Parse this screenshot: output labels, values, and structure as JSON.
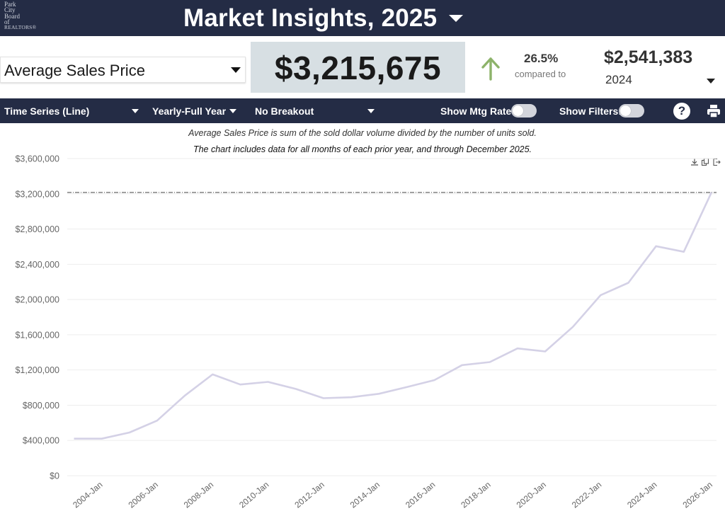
{
  "header": {
    "logo_lines": [
      "Park",
      "City",
      "Board",
      "of",
      "REALTORS®"
    ],
    "title": "Market Insights, 2025"
  },
  "metric": {
    "selected": "Average Sales Price",
    "current_value": "$3,215,675",
    "change_pct": "26.5%",
    "change_direction": "up",
    "compared_to_label": "compared to",
    "compare_value": "$2,541,383",
    "compare_year": "2024"
  },
  "controls": {
    "chart_type": "Time Series (Line)",
    "period": "Yearly-Full Year",
    "breakout": "No Breakout",
    "show_mtg_rate_label": "Show Mtg Rate:",
    "show_mtg_rate": false,
    "show_filters_label": "Show Filters:",
    "show_filters": false,
    "help_icon": "question-circle-icon",
    "print_icon": "printer-icon"
  },
  "description": {
    "line1": "Average Sales Price is sum of the sold dollar volume divided by the number of units sold.",
    "line2": "The chart includes data for all months of each prior year, and through December 2025."
  },
  "colors": {
    "header_bg": "#242c45",
    "value_box_bg": "#d7dfe3",
    "up_arrow": "#8db36a",
    "line": "#d4d1e6"
  },
  "chart_data": {
    "type": "line",
    "title": "",
    "xlabel": "",
    "ylabel": "",
    "x": [
      "2003-Jan",
      "2004-Jan",
      "2005-Jan",
      "2006-Jan",
      "2007-Jan",
      "2008-Jan",
      "2009-Jan",
      "2010-Jan",
      "2011-Jan",
      "2012-Jan",
      "2013-Jan",
      "2014-Jan",
      "2015-Jan",
      "2016-Jan",
      "2017-Jan",
      "2018-Jan",
      "2019-Jan",
      "2020-Jan",
      "2021-Jan",
      "2022-Jan",
      "2023-Jan",
      "2024-Jan",
      "2025-Jan",
      "2026-Jan"
    ],
    "x_tick_labels": [
      "2004-Jan",
      "2006-Jan",
      "2008-Jan",
      "2010-Jan",
      "2012-Jan",
      "2014-Jan",
      "2016-Jan",
      "2018-Jan",
      "2020-Jan",
      "2022-Jan",
      "2024-Jan",
      "2026-Jan"
    ],
    "series": [
      {
        "values": [
          420000,
          420000,
          490000,
          625000,
          910000,
          1150000,
          1035000,
          1065000,
          985000,
          880000,
          890000,
          930000,
          1005000,
          1085000,
          1255000,
          1290000,
          1445000,
          1410000,
          1690000,
          2050000,
          2190000,
          2605000,
          2541383,
          3215675
        ]
      }
    ],
    "y_tick_labels": [
      "$0",
      "$400,000",
      "$800,000",
      "$1,200,000",
      "$1,600,000",
      "$2,000,000",
      "$2,400,000",
      "$2,800,000",
      "$3,200,000",
      "$3,600,000"
    ],
    "ylim": [
      0,
      3600000
    ],
    "reference_line": 3215675,
    "grid": true
  }
}
